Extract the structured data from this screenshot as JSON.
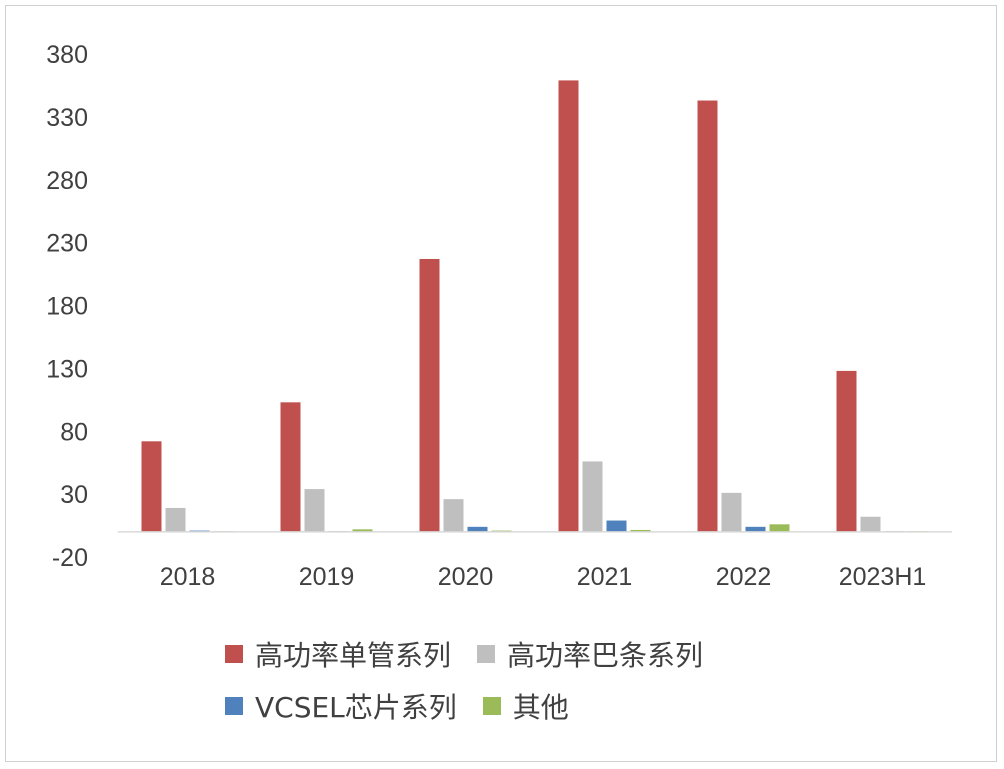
{
  "chart_data": {
    "type": "bar",
    "categories": [
      "2018",
      "2019",
      "2020",
      "2021",
      "2022",
      "2023H1"
    ],
    "series": [
      {
        "name": "高功率单管系列",
        "color": "#C0504D",
        "values": [
          72,
          103,
          217,
          359,
          343,
          128
        ]
      },
      {
        "name": "高功率巴条系列",
        "color": "#BFBFBF",
        "values": [
          19,
          34,
          26,
          56,
          31,
          12
        ]
      },
      {
        "name": "VCSEL芯片系列",
        "color": "#4F81BD",
        "values": [
          1,
          0.5,
          4,
          9,
          4,
          0.5
        ]
      },
      {
        "name": "其他",
        "color": "#9BBB59",
        "values": [
          0.5,
          2,
          1,
          1.5,
          6,
          0.5
        ]
      }
    ],
    "y_ticks": [
      "380",
      "330",
      "280",
      "230",
      "180",
      "130",
      "80",
      "30",
      "-20"
    ],
    "ylim": [
      -20,
      380
    ],
    "grid": false,
    "legend_position": "bottom"
  }
}
